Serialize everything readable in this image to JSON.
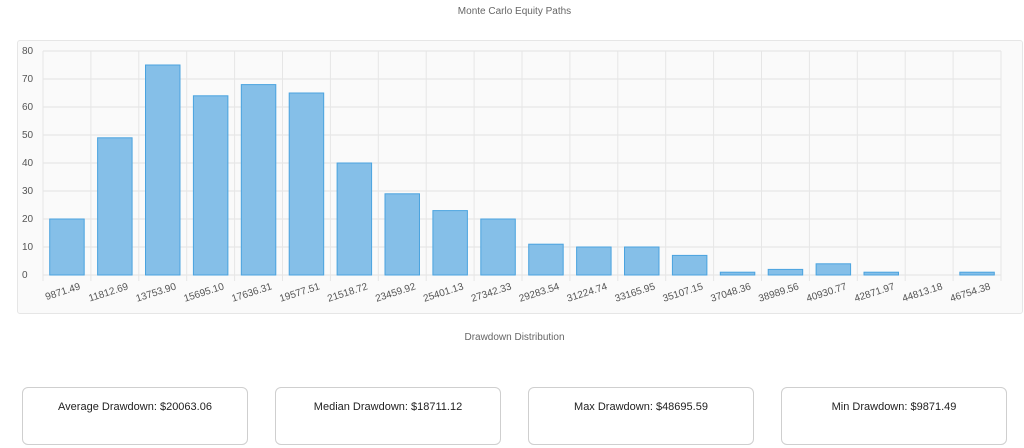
{
  "title": "Monte Carlo Equity Paths",
  "subtitle": "Drawdown Distribution",
  "chart_data": {
    "type": "bar",
    "title": "",
    "xlabel": "",
    "ylabel": "",
    "ylim": [
      0,
      80
    ],
    "yticks": [
      0,
      10,
      20,
      30,
      40,
      50,
      60,
      70,
      80
    ],
    "grid": true,
    "categories": [
      "9871.49",
      "11812.69",
      "13753.90",
      "15695.10",
      "17636.31",
      "19577.51",
      "21518.72",
      "23459.92",
      "25401.13",
      "27342.33",
      "29283.54",
      "31224.74",
      "33165.95",
      "35107.15",
      "37048.36",
      "38989.56",
      "40930.77",
      "42871.97",
      "44813.18",
      "46754.38"
    ],
    "values": [
      20,
      49,
      75,
      64,
      68,
      65,
      40,
      29,
      23,
      20,
      11,
      10,
      10,
      7,
      1,
      2,
      4,
      1,
      0,
      1
    ],
    "bar_color": "#85bfe8",
    "bar_border": "#4aa3df"
  },
  "stats": {
    "average": "Average Drawdown: $20063.06",
    "median": "Median Drawdown: $18711.12",
    "max": "Max Drawdown: $48695.59",
    "min": "Min Drawdown: $9871.49"
  }
}
